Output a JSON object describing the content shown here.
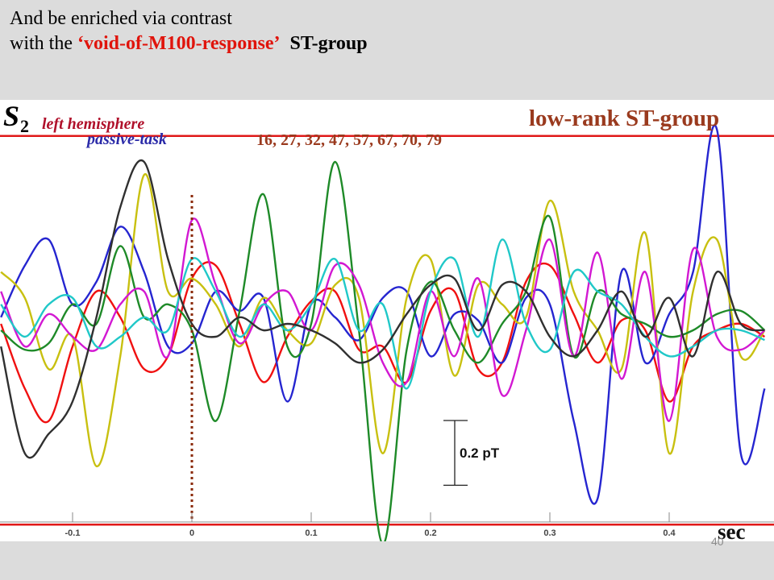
{
  "slide": {
    "heading_line1": "And be enriched via contrast",
    "heading_line2_pre": "with the ",
    "heading_line2_highlight": "‘void-of-M100-response’",
    "heading_line2_post": "ST-group",
    "highlight_color": "#e0140c",
    "page_number": "40"
  },
  "chart_data": {
    "type": "line",
    "subject_label_main": "S",
    "subject_label_sub": "2",
    "legend": [
      {
        "text": "left hemisphere",
        "color": "#b0102a"
      },
      {
        "text": "passive-task",
        "color": "#2a2aa8"
      }
    ],
    "group_title": "low-rank ST-group",
    "group_title_color": "#9a3a1e",
    "trial_numbers": "16, 27, 32, 47, 57, 67, 70, 79",
    "trial_numbers_color": "#9a3a1e",
    "scale_bar_label": "0.2 pT",
    "scale_bar_pT": 0.2,
    "xlabel": "sec",
    "xlim": [
      -0.16,
      0.48
    ],
    "x_ticks": [
      -0.1,
      0,
      0.1,
      0.2,
      0.3,
      0.4
    ],
    "x_tick_labels": [
      "-0.1",
      "0",
      "0.1",
      "0.2",
      "0.3",
      "0.4"
    ],
    "ylim": [
      -0.68,
      0.68
    ],
    "stimulus_onset": 0,
    "bound_lines_pT": [
      0.6,
      -0.6
    ],
    "bound_line_color": "#e01818",
    "onset_line_color": "#8b2a0a",
    "series": [
      {
        "color": "#f01010",
        "x": [
          -0.16,
          -0.14,
          -0.12,
          -0.1,
          -0.08,
          -0.06,
          -0.04,
          -0.02,
          0,
          0.02,
          0.04,
          0.06,
          0.08,
          0.1,
          0.12,
          0.14,
          0.16,
          0.18,
          0.2,
          0.22,
          0.24,
          0.26,
          0.28,
          0.3,
          0.32,
          0.34,
          0.36,
          0.38,
          0.4,
          0.42,
          0.44,
          0.46,
          0.48
        ],
        "y": [
          0.02,
          -0.18,
          -0.28,
          -0.05,
          0.12,
          0.04,
          -0.12,
          -0.08,
          0.16,
          0.2,
          0.02,
          -0.16,
          -0.02,
          0.09,
          0.12,
          -0.06,
          -0.05,
          -0.16,
          0.06,
          0.12,
          -0.12,
          -0.1,
          0.15,
          0.2,
          0.05,
          -0.1,
          0.03,
          0.0,
          -0.22,
          -0.05,
          0.0,
          0.02,
          -0.02
        ]
      },
      {
        "color": "#2525d0",
        "x": [
          -0.16,
          -0.14,
          -0.12,
          -0.1,
          -0.08,
          -0.06,
          -0.04,
          -0.02,
          0,
          0.02,
          0.04,
          0.06,
          0.08,
          0.1,
          0.12,
          0.14,
          0.16,
          0.18,
          0.2,
          0.22,
          0.24,
          0.26,
          0.28,
          0.3,
          0.32,
          0.34,
          0.36,
          0.38,
          0.4,
          0.42,
          0.44,
          0.46,
          0.48
        ],
        "y": [
          0.04,
          0.2,
          0.28,
          0.08,
          0.15,
          0.32,
          0.18,
          -0.05,
          -0.04,
          0.12,
          0.06,
          0.1,
          -0.22,
          0.08,
          0.04,
          -0.03,
          0.1,
          0.12,
          -0.08,
          0.05,
          0.03,
          -0.1,
          0.1,
          0.08,
          -0.28,
          -0.52,
          0.18,
          -0.1,
          0.05,
          0.18,
          0.62,
          -0.38,
          -0.18
        ]
      },
      {
        "color": "#c8c010",
        "x": [
          -0.16,
          -0.14,
          -0.12,
          -0.1,
          -0.08,
          -0.06,
          -0.04,
          -0.02,
          0,
          0.02,
          0.04,
          0.06,
          0.08,
          0.1,
          0.12,
          0.14,
          0.16,
          0.18,
          0.2,
          0.22,
          0.24,
          0.26,
          0.28,
          0.3,
          0.32,
          0.34,
          0.36,
          0.38,
          0.4,
          0.42,
          0.44,
          0.46,
          0.48
        ],
        "y": [
          0.18,
          0.1,
          -0.12,
          -0.02,
          -0.42,
          -0.08,
          0.48,
          0.12,
          0.16,
          0.08,
          -0.05,
          0.1,
          0.0,
          -0.04,
          0.14,
          0.1,
          -0.38,
          0.1,
          0.22,
          -0.14,
          0.14,
          0.08,
          0.04,
          0.4,
          0.12,
          0.0,
          -0.12,
          0.3,
          -0.38,
          0.12,
          0.28,
          -0.08,
          0.0
        ]
      },
      {
        "color": "#1e8a28",
        "x": [
          -0.16,
          -0.14,
          -0.12,
          -0.1,
          -0.08,
          -0.06,
          -0.04,
          -0.02,
          0,
          0.02,
          0.04,
          0.06,
          0.08,
          0.1,
          0.12,
          0.14,
          0.16,
          0.18,
          0.2,
          0.22,
          0.24,
          0.26,
          0.28,
          0.3,
          0.32,
          0.34,
          0.36,
          0.38,
          0.4,
          0.42,
          0.44,
          0.46,
          0.48
        ],
        "y": [
          0.0,
          -0.06,
          -0.04,
          0.08,
          0.02,
          0.26,
          0.04,
          0.08,
          0.0,
          -0.28,
          0.06,
          0.42,
          -0.05,
          0.02,
          0.52,
          0.0,
          -0.66,
          -0.06,
          0.15,
          0.0,
          -0.1,
          0.02,
          0.12,
          0.35,
          -0.08,
          0.12,
          0.05,
          0.02,
          -0.02,
          0.0,
          0.05,
          0.06,
          0.0
        ]
      },
      {
        "color": "#d218d2",
        "x": [
          -0.16,
          -0.14,
          -0.12,
          -0.1,
          -0.08,
          -0.06,
          -0.04,
          -0.02,
          0,
          0.02,
          0.04,
          0.06,
          0.08,
          0.1,
          0.12,
          0.14,
          0.16,
          0.18,
          0.2,
          0.22,
          0.24,
          0.26,
          0.28,
          0.3,
          0.32,
          0.34,
          0.36,
          0.38,
          0.4,
          0.42,
          0.44,
          0.46,
          0.48
        ],
        "y": [
          0.12,
          -0.05,
          0.05,
          -0.02,
          -0.06,
          0.08,
          0.12,
          -0.08,
          0.34,
          0.14,
          -0.04,
          0.08,
          0.12,
          0.0,
          0.2,
          0.14,
          -0.1,
          -0.16,
          0.12,
          -0.08,
          0.16,
          -0.2,
          0.0,
          0.28,
          -0.08,
          0.24,
          -0.15,
          0.18,
          -0.28,
          0.25,
          -0.02,
          -0.06,
          0.0
        ]
      },
      {
        "color": "#20c8c8",
        "x": [
          -0.16,
          -0.14,
          -0.12,
          -0.1,
          -0.08,
          -0.06,
          -0.04,
          -0.02,
          0,
          0.02,
          0.04,
          0.06,
          0.08,
          0.1,
          0.12,
          0.14,
          0.16,
          0.18,
          0.2,
          0.22,
          0.24,
          0.26,
          0.28,
          0.3,
          0.32,
          0.34,
          0.36,
          0.38,
          0.4,
          0.42,
          0.44,
          0.46,
          0.48
        ],
        "y": [
          0.08,
          -0.02,
          0.08,
          0.1,
          -0.05,
          -0.02,
          0.04,
          0.0,
          0.22,
          0.12,
          -0.02,
          0.08,
          0.0,
          0.08,
          0.22,
          0.0,
          0.08,
          -0.18,
          0.12,
          0.22,
          -0.02,
          0.28,
          0.02,
          -0.06,
          0.18,
          0.12,
          0.08,
          -0.02,
          -0.08,
          -0.05,
          0.0,
          0.0,
          -0.03
        ]
      },
      {
        "color": "#303030",
        "x": [
          -0.16,
          -0.14,
          -0.12,
          -0.1,
          -0.08,
          -0.06,
          -0.04,
          -0.02,
          0,
          0.02,
          0.04,
          0.06,
          0.08,
          0.1,
          0.12,
          0.14,
          0.16,
          0.18,
          0.2,
          0.22,
          0.24,
          0.26,
          0.28,
          0.3,
          0.32,
          0.34,
          0.36,
          0.38,
          0.4,
          0.42,
          0.44,
          0.46,
          0.48
        ],
        "y": [
          -0.05,
          -0.38,
          -0.32,
          -0.22,
          0.04,
          0.38,
          0.52,
          0.22,
          0.02,
          -0.02,
          0.04,
          0.0,
          0.02,
          0.0,
          -0.04,
          -0.1,
          -0.06,
          0.05,
          0.14,
          0.16,
          0.0,
          0.14,
          0.12,
          -0.02,
          -0.08,
          0.0,
          0.12,
          -0.02,
          0.1,
          -0.08,
          0.18,
          0.02,
          0.0
        ]
      }
    ]
  }
}
